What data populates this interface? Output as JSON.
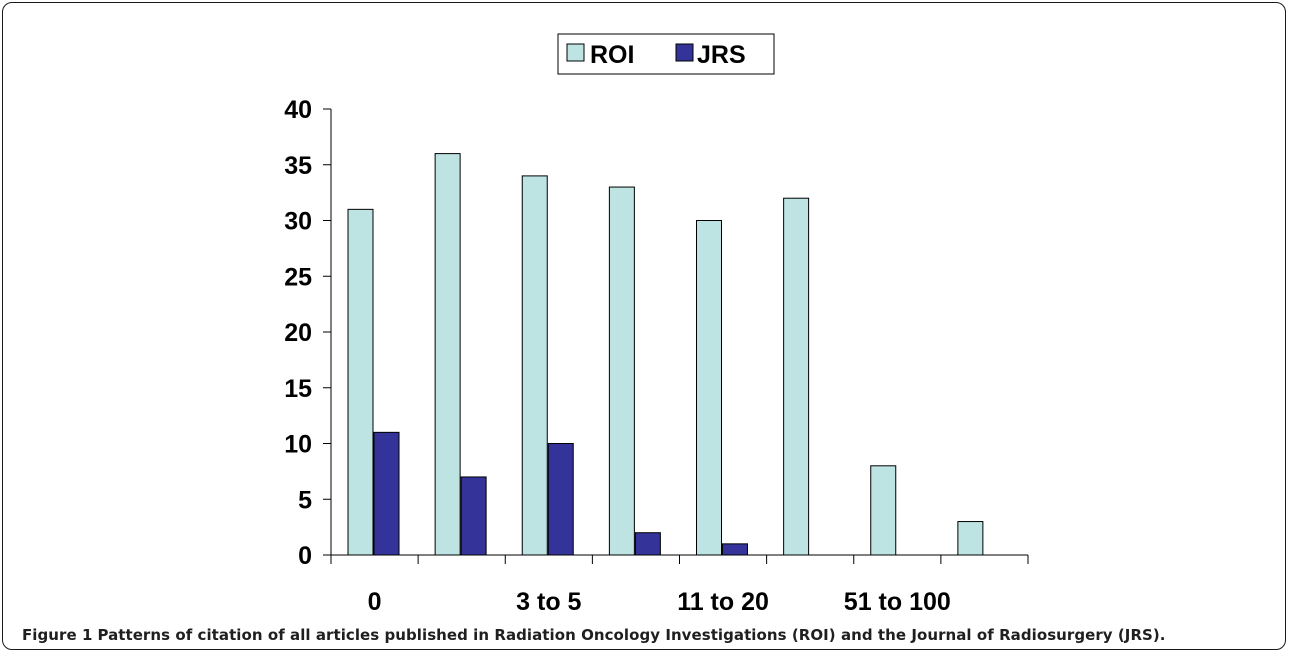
{
  "chart_data": {
    "type": "bar",
    "categories": [
      "0",
      "",
      "3 to 5",
      "",
      "11 to 20",
      "",
      "51 to 100",
      ""
    ],
    "series": [
      {
        "name": "ROI",
        "values": [
          31,
          36,
          34,
          33,
          30,
          32,
          8,
          3
        ],
        "color": "#bde3e3"
      },
      {
        "name": "JRS",
        "values": [
          11,
          7,
          10,
          2,
          1,
          0,
          0,
          0
        ],
        "color": "#33339a"
      }
    ],
    "yticks": [
      0,
      5,
      10,
      15,
      20,
      25,
      30,
      35,
      40
    ],
    "ylim": [
      0,
      40
    ],
    "grid": false,
    "legend_position": "top-center"
  },
  "caption": {
    "label": "Figure 1",
    "text": "Patterns of citation of all articles published in Radiation Oncology Investigations (ROI) and the Journal of Radiosurgery (JRS)."
  }
}
